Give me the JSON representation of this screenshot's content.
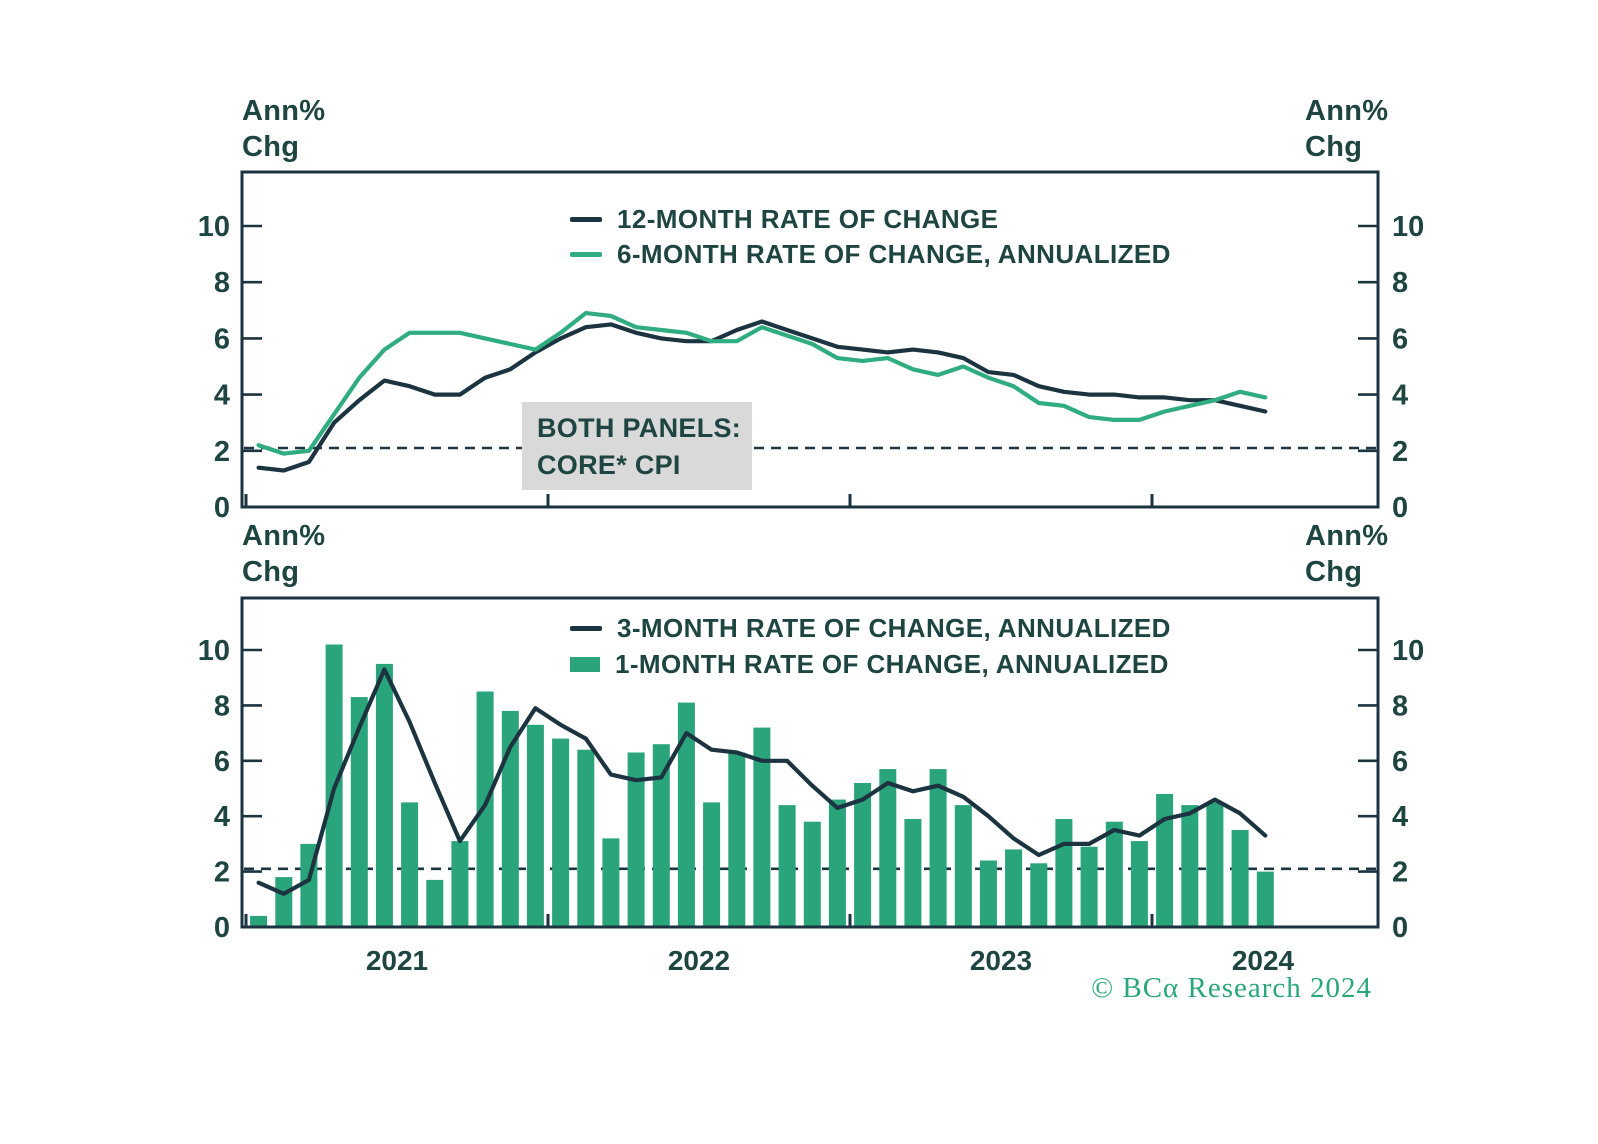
{
  "labels": {
    "unit_line1": "Ann%",
    "unit_line2": "Chg"
  },
  "annotation": {
    "line1": "BOTH PANELS:",
    "line2": "CORE* CPI"
  },
  "branding": {
    "copyright": "© BCα Research 2024"
  },
  "colors": {
    "dark": "#1b3440",
    "text": "#1e4541",
    "green_line": "#2fac80",
    "green_bar": "#2aa47b",
    "box": "#d9d9d9",
    "brand": "#2aa879"
  },
  "months": [
    "2021-01",
    "2021-02",
    "2021-03",
    "2021-04",
    "2021-05",
    "2021-06",
    "2021-07",
    "2021-08",
    "2021-09",
    "2021-10",
    "2021-11",
    "2021-12",
    "2022-01",
    "2022-02",
    "2022-03",
    "2022-04",
    "2022-05",
    "2022-06",
    "2022-07",
    "2022-08",
    "2022-09",
    "2022-10",
    "2022-11",
    "2022-12",
    "2023-01",
    "2023-02",
    "2023-03",
    "2023-04",
    "2023-05",
    "2023-06",
    "2023-07",
    "2023-08",
    "2023-09",
    "2023-10",
    "2023-11",
    "2023-12",
    "2024-01",
    "2024-02",
    "2024-03",
    "2024-04",
    "2024-05"
  ],
  "chart_data": [
    {
      "type": "line",
      "panel": "top",
      "subject": "Core CPI",
      "x_range": {
        "start": "2021-01",
        "end": "2024-05",
        "freq": "monthly"
      },
      "ylim": [
        0,
        12
      ],
      "yticks": [
        10,
        8,
        6,
        4,
        2,
        0
      ],
      "ylabel_left": "Ann% Chg",
      "ylabel_right": "Ann% Chg",
      "reference_line": 2.1,
      "grid": false,
      "legend_position": "top-center-inside",
      "series": [
        {
          "name": "12-MONTH RATE OF CHANGE",
          "color": "#1b3440",
          "values": [
            1.4,
            1.3,
            1.6,
            3.0,
            3.8,
            4.5,
            4.3,
            4.0,
            4.0,
            4.6,
            4.9,
            5.5,
            6.0,
            6.4,
            6.5,
            6.2,
            6.0,
            5.9,
            5.9,
            6.3,
            6.6,
            6.3,
            6.0,
            5.7,
            5.6,
            5.5,
            5.6,
            5.5,
            5.3,
            4.8,
            4.7,
            4.3,
            4.1,
            4.0,
            4.0,
            3.9,
            3.9,
            3.8,
            3.8,
            3.6,
            3.4
          ]
        },
        {
          "name": "6-MONTH RATE OF CHANGE, ANNUALIZED",
          "color": "#2fac80",
          "values": [
            2.2,
            1.9,
            2.0,
            3.3,
            4.6,
            5.6,
            6.2,
            6.2,
            6.2,
            6.0,
            5.8,
            5.6,
            6.2,
            6.9,
            6.8,
            6.4,
            6.3,
            6.2,
            5.9,
            5.9,
            6.4,
            6.1,
            5.8,
            5.3,
            5.2,
            5.3,
            4.9,
            4.7,
            5.0,
            4.6,
            4.3,
            3.7,
            3.6,
            3.2,
            3.1,
            3.1,
            3.4,
            3.6,
            3.8,
            4.1,
            3.9
          ]
        }
      ],
      "x_labels": [
        "2021",
        "2022",
        "2023",
        "2024"
      ]
    },
    {
      "type": "bar+line",
      "panel": "bottom",
      "subject": "Core CPI",
      "x_range": {
        "start": "2021-01",
        "end": "2024-05",
        "freq": "monthly"
      },
      "ylim": [
        0,
        12
      ],
      "yticks": [
        10,
        8,
        6,
        4,
        2,
        0
      ],
      "ylabel_left": "Ann% Chg",
      "ylabel_right": "Ann% Chg",
      "reference_line": 2.1,
      "grid": false,
      "legend_position": "top-center-inside",
      "series": [
        {
          "name": "3-MONTH RATE OF CHANGE, ANNUALIZED",
          "style": "line",
          "color": "#1b3440",
          "values": [
            1.6,
            1.2,
            1.7,
            5.0,
            7.2,
            9.3,
            7.4,
            5.2,
            3.1,
            4.4,
            6.5,
            7.9,
            7.3,
            6.8,
            5.5,
            5.3,
            5.4,
            7.0,
            6.4,
            6.3,
            6.0,
            6.0,
            5.1,
            4.3,
            4.6,
            5.2,
            4.9,
            5.1,
            4.7,
            4.0,
            3.2,
            2.6,
            3.0,
            3.0,
            3.5,
            3.3,
            3.9,
            4.1,
            4.6,
            4.1,
            3.3
          ]
        },
        {
          "name": "1-MONTH RATE OF CHANGE, ANNUALIZED",
          "style": "bar",
          "color": "#2aa47b",
          "values": [
            0.4,
            1.8,
            3.0,
            10.2,
            8.3,
            9.5,
            4.5,
            1.7,
            3.1,
            8.5,
            7.8,
            7.3,
            6.8,
            6.4,
            3.2,
            6.3,
            6.6,
            8.1,
            4.5,
            6.3,
            7.2,
            4.4,
            3.8,
            4.6,
            5.2,
            5.7,
            3.9,
            5.7,
            4.4,
            2.4,
            2.8,
            2.3,
            3.9,
            2.9,
            3.8,
            3.1,
            4.8,
            4.4,
            4.5,
            3.5,
            2.0
          ]
        }
      ],
      "x_labels": [
        "2021",
        "2022",
        "2023",
        "2024"
      ]
    }
  ]
}
